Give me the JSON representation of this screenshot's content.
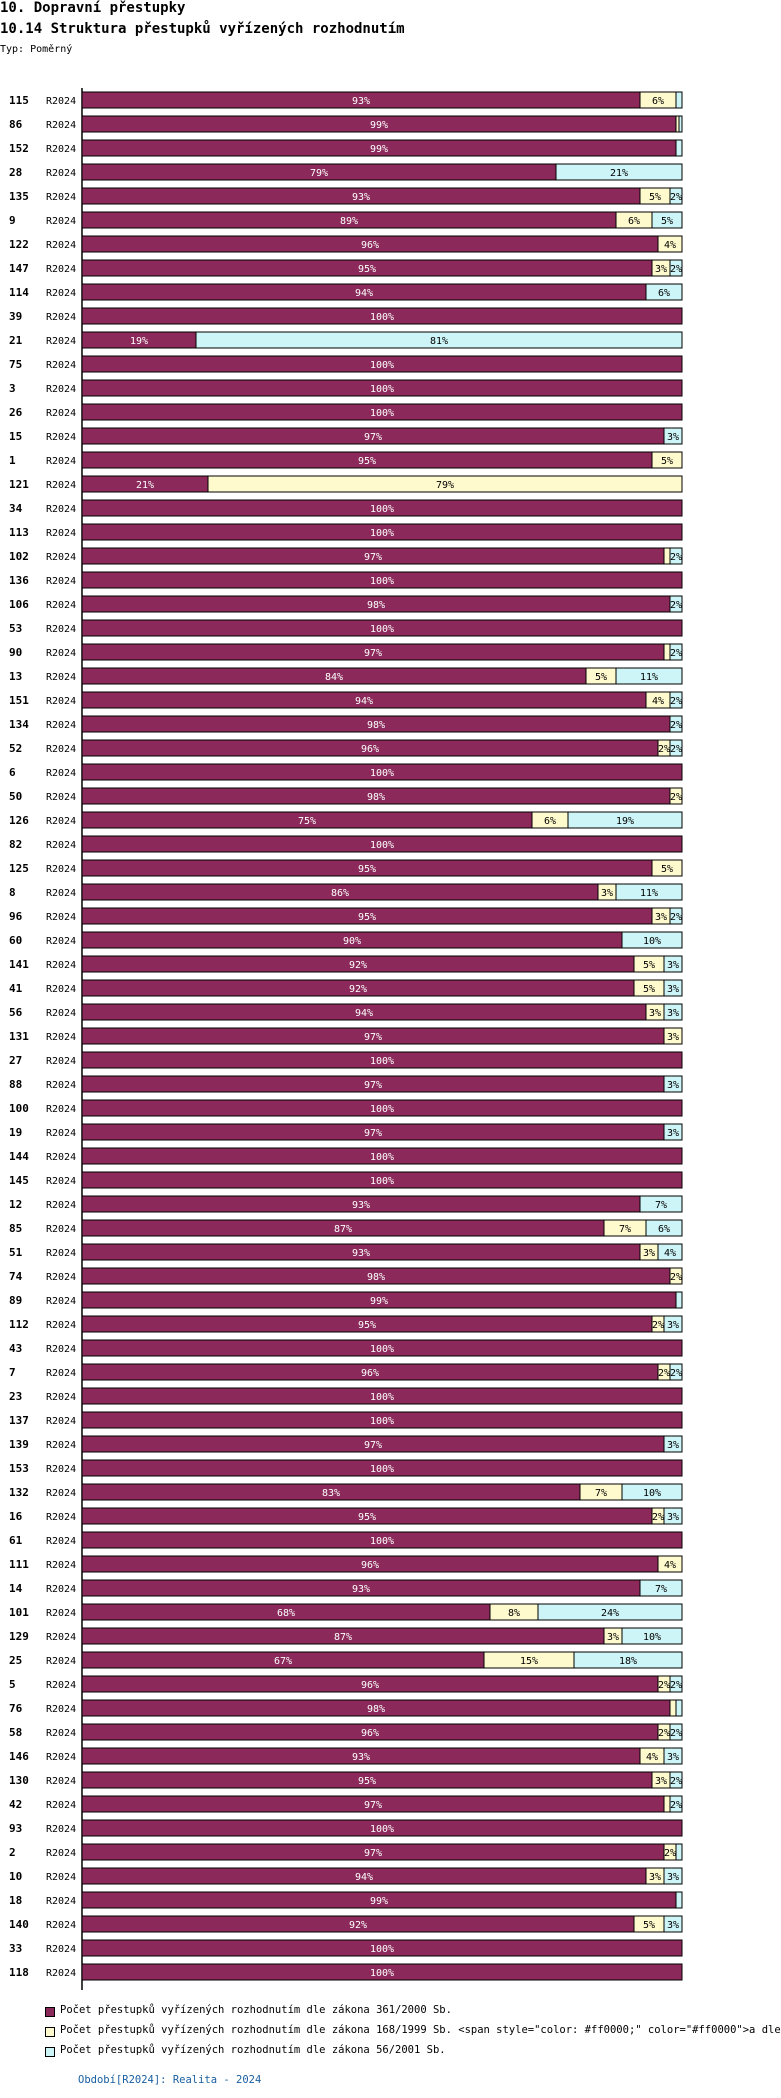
{
  "header": {
    "title": "10. Dopravní přestupky",
    "subtitle": "10.14 Struktura přestupků vyřízených rozhodnutím",
    "type_label": "Typ: Poměrný"
  },
  "footer": {
    "text": "Období[R2024]: Realita - 2024"
  },
  "colors": {
    "s1": "#8b2a5a",
    "s2": "#fffacd",
    "s3": "#cdf5f8"
  },
  "chart_data": {
    "type": "bar",
    "orientation": "horizontal",
    "stacked": "percent",
    "period": "R2024",
    "series": [
      {
        "name": "Počet přestupků vyřízených rozhodnutím dle zákona 361/2000 Sb.",
        "color": "#8b2a5a"
      },
      {
        "name": "Počet přestupků vyřízených rozhodnutím dle zákona 168/1999 Sb. <span style=\"color: #ff0000;\" color=\"#ff0000\">a dle",
        "color": "#fffacd"
      },
      {
        "name": "Počet přestupků vyřízených rozhodnutím dle zákona 56/2001 Sb.",
        "color": "#cdf5f8"
      }
    ],
    "rows": [
      {
        "cat": "115",
        "v": [
          93,
          6,
          1
        ]
      },
      {
        "cat": "86",
        "v": [
          99,
          0.5,
          0.5
        ]
      },
      {
        "cat": "152",
        "v": [
          99,
          0,
          1
        ]
      },
      {
        "cat": "28",
        "v": [
          79,
          0,
          21
        ]
      },
      {
        "cat": "135",
        "v": [
          93,
          5,
          2
        ]
      },
      {
        "cat": "9",
        "v": [
          89,
          6,
          5
        ]
      },
      {
        "cat": "122",
        "v": [
          96,
          4,
          0
        ]
      },
      {
        "cat": "147",
        "v": [
          95,
          3,
          2
        ]
      },
      {
        "cat": "114",
        "v": [
          94,
          0,
          6
        ]
      },
      {
        "cat": "39",
        "v": [
          100,
          0,
          0
        ]
      },
      {
        "cat": "21",
        "v": [
          19,
          0,
          81
        ]
      },
      {
        "cat": "75",
        "v": [
          100,
          0,
          0
        ]
      },
      {
        "cat": "3",
        "v": [
          100,
          0,
          0
        ]
      },
      {
        "cat": "26",
        "v": [
          100,
          0,
          0
        ]
      },
      {
        "cat": "15",
        "v": [
          97,
          0,
          3
        ]
      },
      {
        "cat": "1",
        "v": [
          95,
          5,
          0
        ]
      },
      {
        "cat": "121",
        "v": [
          21,
          79,
          0
        ]
      },
      {
        "cat": "34",
        "v": [
          100,
          0,
          0
        ]
      },
      {
        "cat": "113",
        "v": [
          100,
          0,
          0
        ]
      },
      {
        "cat": "102",
        "v": [
          97,
          1,
          2
        ]
      },
      {
        "cat": "136",
        "v": [
          100,
          0,
          0
        ]
      },
      {
        "cat": "106",
        "v": [
          98,
          0,
          2
        ]
      },
      {
        "cat": "53",
        "v": [
          100,
          0,
          0
        ]
      },
      {
        "cat": "90",
        "v": [
          97,
          1,
          2
        ]
      },
      {
        "cat": "13",
        "v": [
          84,
          5,
          11
        ]
      },
      {
        "cat": "151",
        "v": [
          94,
          4,
          2
        ]
      },
      {
        "cat": "134",
        "v": [
          98,
          0,
          2
        ]
      },
      {
        "cat": "52",
        "v": [
          96,
          2,
          2
        ]
      },
      {
        "cat": "6",
        "v": [
          100,
          0,
          0
        ]
      },
      {
        "cat": "50",
        "v": [
          98,
          2,
          0
        ]
      },
      {
        "cat": "126",
        "v": [
          75,
          6,
          19
        ]
      },
      {
        "cat": "82",
        "v": [
          100,
          0,
          0
        ]
      },
      {
        "cat": "125",
        "v": [
          95,
          5,
          0
        ]
      },
      {
        "cat": "8",
        "v": [
          86,
          3,
          11
        ]
      },
      {
        "cat": "96",
        "v": [
          95,
          3,
          2
        ]
      },
      {
        "cat": "60",
        "v": [
          90,
          0,
          10
        ]
      },
      {
        "cat": "141",
        "v": [
          92,
          5,
          3
        ]
      },
      {
        "cat": "41",
        "v": [
          92,
          5,
          3
        ]
      },
      {
        "cat": "56",
        "v": [
          94,
          3,
          3
        ]
      },
      {
        "cat": "131",
        "v": [
          97,
          3,
          0
        ]
      },
      {
        "cat": "27",
        "v": [
          100,
          0,
          0
        ]
      },
      {
        "cat": "88",
        "v": [
          97,
          0,
          3
        ]
      },
      {
        "cat": "100",
        "v": [
          100,
          0,
          0
        ]
      },
      {
        "cat": "19",
        "v": [
          97,
          0,
          3
        ]
      },
      {
        "cat": "144",
        "v": [
          100,
          0,
          0
        ]
      },
      {
        "cat": "145",
        "v": [
          100,
          0,
          0
        ]
      },
      {
        "cat": "12",
        "v": [
          93,
          0,
          7
        ]
      },
      {
        "cat": "85",
        "v": [
          87,
          7,
          6
        ]
      },
      {
        "cat": "51",
        "v": [
          93,
          3,
          4
        ]
      },
      {
        "cat": "74",
        "v": [
          98,
          2,
          0
        ]
      },
      {
        "cat": "89",
        "v": [
          99,
          0,
          1
        ]
      },
      {
        "cat": "112",
        "v": [
          95,
          2,
          3
        ]
      },
      {
        "cat": "43",
        "v": [
          100,
          0,
          0
        ]
      },
      {
        "cat": "7",
        "v": [
          96,
          2,
          2
        ]
      },
      {
        "cat": "23",
        "v": [
          100,
          0,
          0
        ]
      },
      {
        "cat": "137",
        "v": [
          100,
          0,
          0
        ]
      },
      {
        "cat": "139",
        "v": [
          97,
          0,
          3
        ]
      },
      {
        "cat": "153",
        "v": [
          100,
          0,
          0
        ]
      },
      {
        "cat": "132",
        "v": [
          83,
          7,
          10
        ]
      },
      {
        "cat": "16",
        "v": [
          95,
          2,
          3
        ]
      },
      {
        "cat": "61",
        "v": [
          100,
          0,
          0
        ]
      },
      {
        "cat": "111",
        "v": [
          96,
          4,
          0
        ]
      },
      {
        "cat": "14",
        "v": [
          93,
          0,
          7
        ]
      },
      {
        "cat": "101",
        "v": [
          68,
          8,
          24
        ]
      },
      {
        "cat": "129",
        "v": [
          87,
          3,
          10
        ]
      },
      {
        "cat": "25",
        "v": [
          67,
          15,
          18
        ]
      },
      {
        "cat": "5",
        "v": [
          96,
          2,
          2
        ]
      },
      {
        "cat": "76",
        "v": [
          98,
          1,
          1
        ]
      },
      {
        "cat": "58",
        "v": [
          96,
          2,
          2
        ]
      },
      {
        "cat": "146",
        "v": [
          93,
          4,
          3
        ]
      },
      {
        "cat": "130",
        "v": [
          95,
          3,
          2
        ]
      },
      {
        "cat": "42",
        "v": [
          97,
          1,
          2
        ]
      },
      {
        "cat": "93",
        "v": [
          100,
          0,
          0
        ]
      },
      {
        "cat": "2",
        "v": [
          97,
          2,
          1
        ]
      },
      {
        "cat": "10",
        "v": [
          94,
          3,
          3
        ]
      },
      {
        "cat": "18",
        "v": [
          99,
          0,
          1
        ]
      },
      {
        "cat": "140",
        "v": [
          92,
          5,
          3
        ]
      },
      {
        "cat": "33",
        "v": [
          100,
          0,
          0
        ]
      },
      {
        "cat": "118",
        "v": [
          100,
          0,
          0
        ]
      }
    ]
  }
}
